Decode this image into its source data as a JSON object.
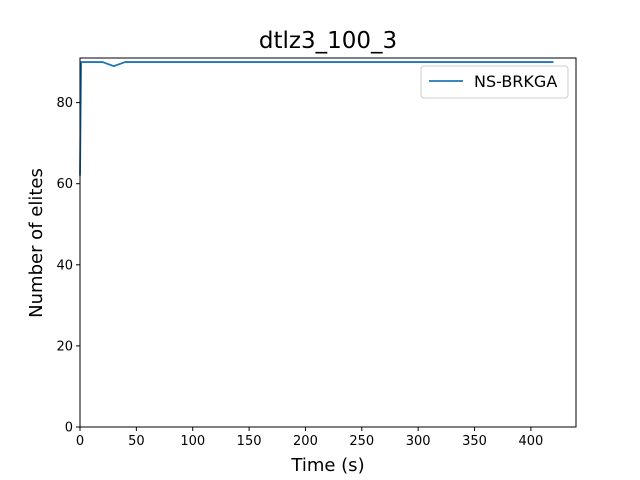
{
  "chart_data": {
    "type": "line",
    "title": "dtlz3_100_3",
    "xlabel": "Time (s)",
    "ylabel": "Number of elites",
    "xlim": [
      0,
      440
    ],
    "ylim": [
      0,
      91
    ],
    "xticks": [
      0,
      50,
      100,
      150,
      200,
      250,
      300,
      350,
      400
    ],
    "yticks": [
      0,
      20,
      40,
      60,
      80
    ],
    "grid": false,
    "legend_position": "upper right",
    "series": [
      {
        "name": "NS-BRKGA",
        "color": "#1f77b4",
        "x": [
          0,
          1,
          2,
          10,
          20,
          30,
          40,
          60,
          100,
          200,
          300,
          400,
          420
        ],
        "y": [
          62,
          90,
          90,
          90,
          90,
          89,
          90,
          90,
          90,
          90,
          90,
          90,
          90
        ]
      }
    ]
  }
}
